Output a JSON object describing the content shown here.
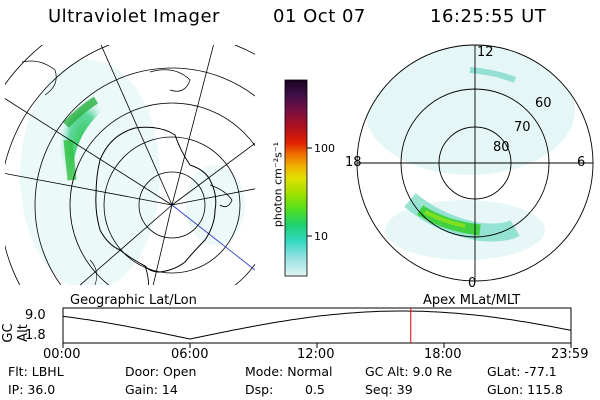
{
  "header": {
    "instrument": "Ultraviolet Imager",
    "date": "01 Oct 07",
    "time": "16:25:55 UT"
  },
  "left_panel": {
    "label": "Geographic Lat/Lon"
  },
  "right_panel": {
    "label": "Apex MLat/MLT",
    "mlt_labels": [
      "12",
      "18",
      "6",
      "0"
    ],
    "lat_labels": [
      "60",
      "70",
      "80"
    ]
  },
  "colorbar": {
    "unit_label": "photon cm⁻²s⁻¹",
    "ticks": [
      "100",
      "10"
    ],
    "colors": [
      "#1a0020",
      "#300040",
      "#5a1060",
      "#7a1040",
      "#a01020",
      "#c01010",
      "#e02000",
      "#f06000",
      "#f09000",
      "#f0c000",
      "#d8e000",
      "#a0e000",
      "#60e020",
      "#30d060",
      "#20d0b0",
      "#40d8d0",
      "#90e0e0",
      "#c8f0f0"
    ]
  },
  "timeline": {
    "y_axis_label": "GC Alt",
    "y_ticks": [
      "9.0",
      "1.8"
    ],
    "x_ticks": [
      "00:00",
      "06:00",
      "12:00",
      "18:00",
      "23:59"
    ],
    "current_time_hours": 16.43
  },
  "info": {
    "filter": "Flt: LBHL",
    "ip": "IP: 36.0",
    "door": "Door: Open",
    "gain": "Gain: 14",
    "mode": "Mode: Normal",
    "dsp_label": "Dsp:",
    "dsp_value": "0.5",
    "gc_alt": "GC Alt: 9.0 Re",
    "seq": "Seq: 39",
    "glat": "GLat: -77.1",
    "glon": "GLon: 115.8"
  }
}
